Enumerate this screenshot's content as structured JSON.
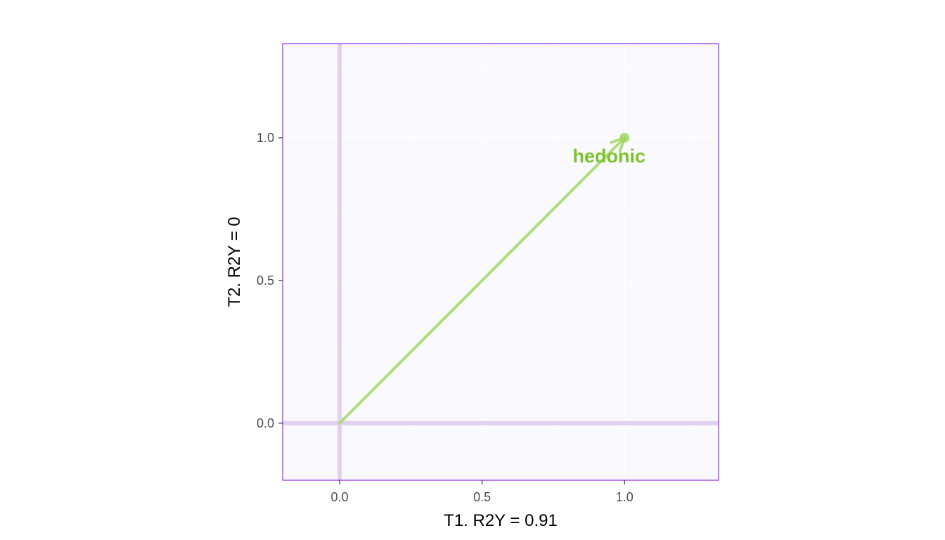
{
  "chart_data": {
    "type": "scatter",
    "title": "",
    "xlabel": "T1. R2Y = 0.91",
    "ylabel": "T2. R2Y = 0",
    "xlim": [
      -0.2,
      1.33
    ],
    "ylim": [
      -0.2,
      1.33
    ],
    "x_ticks": [
      {
        "value": 0.0,
        "label": "0.0"
      },
      {
        "value": 0.5,
        "label": "0.5"
      },
      {
        "value": 1.0,
        "label": "1.0"
      }
    ],
    "y_ticks": [
      {
        "value": 0.0,
        "label": "0.0"
      },
      {
        "value": 0.5,
        "label": "0.5"
      },
      {
        "value": 1.0,
        "label": "1.0"
      }
    ],
    "grid": true,
    "reference_lines": {
      "x": 0,
      "y": 0
    },
    "points": [
      {
        "label": "hedonic",
        "x": 1.0,
        "y": 1.0,
        "arrow_from": [
          0,
          0
        ]
      }
    ],
    "colors": {
      "panel_background": "#f9f9fe",
      "panel_border": "#8a2be2",
      "grid": "#ffffff",
      "reference_line": "#e2d0f0",
      "arrow": "#aedd7a",
      "point": "#9dd45c",
      "point_label": "#7dc22b",
      "axis_tick": "#333333"
    }
  }
}
